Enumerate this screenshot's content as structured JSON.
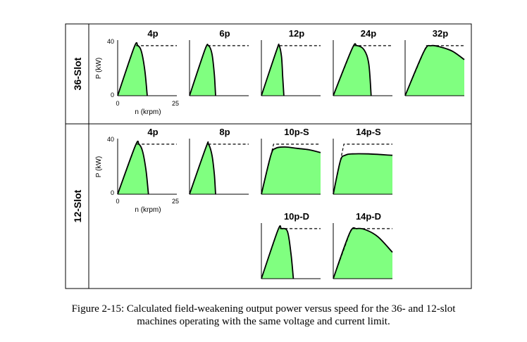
{
  "figure": {
    "caption_line1": "Figure 2-15: Calculated field-weakening output power versus speed for the 36- and 12-slot",
    "caption_line2": "machines operating with the same voltage and current limit.",
    "y_axis_label": "P (kW)",
    "x_axis_label": "n (krpm)",
    "y_tick_max": "40",
    "y_tick_min": "0",
    "x_tick_min": "0",
    "x_tick_max": "25",
    "fill_color": "#80ff80",
    "curve_color": "#000000",
    "limit_line_style": "dashed"
  },
  "chart_data": [
    {
      "type": "area",
      "row": "36-Slot",
      "title": "4p",
      "x": [
        0,
        7,
        8.5,
        10,
        11.5,
        12.5
      ],
      "y": [
        0,
        35,
        36,
        32,
        18,
        0
      ],
      "limit": 36,
      "xlim": [
        0,
        25
      ],
      "ylim": [
        0,
        40
      ]
    },
    {
      "type": "area",
      "row": "36-Slot",
      "title": "6p",
      "x": [
        0,
        6.5,
        8,
        9.5,
        10.5,
        11
      ],
      "y": [
        0,
        33,
        36,
        30,
        15,
        0
      ],
      "limit": 36,
      "xlim": [
        0,
        25
      ],
      "ylim": [
        0,
        40
      ]
    },
    {
      "type": "area",
      "row": "36-Slot",
      "title": "12p",
      "x": [
        0,
        6.5,
        7.5,
        8.5,
        9,
        9.5
      ],
      "y": [
        0,
        33,
        36,
        28,
        14,
        0
      ],
      "limit": 36,
      "xlim": [
        0,
        25
      ],
      "ylim": [
        0,
        40
      ]
    },
    {
      "type": "area",
      "row": "36-Slot",
      "title": "24p",
      "x": [
        0,
        8,
        10,
        13,
        15,
        16
      ],
      "y": [
        0,
        34,
        36,
        33,
        23,
        0
      ],
      "limit": 36,
      "xlim": [
        0,
        25
      ],
      "ylim": [
        0,
        40
      ]
    },
    {
      "type": "area",
      "row": "36-Slot",
      "title": "32p",
      "x": [
        0,
        8,
        11,
        15,
        20,
        25
      ],
      "y": [
        0,
        32,
        36,
        35,
        32,
        26
      ],
      "limit": 36,
      "xlim": [
        0,
        25
      ],
      "ylim": [
        0,
        40
      ]
    },
    {
      "type": "area",
      "row": "12-Slot",
      "title": "4p",
      "x": [
        0,
        7.5,
        9,
        10.5,
        12,
        13
      ],
      "y": [
        0,
        35,
        36,
        31,
        17,
        0
      ],
      "limit": 36,
      "xlim": [
        0,
        25
      ],
      "ylim": [
        0,
        40
      ]
    },
    {
      "type": "area",
      "row": "12-Slot",
      "title": "8p",
      "x": [
        0,
        7,
        8,
        9.5,
        10.5,
        11
      ],
      "y": [
        0,
        34,
        36,
        28,
        14,
        0
      ],
      "limit": 36,
      "xlim": [
        0,
        25
      ],
      "ylim": [
        0,
        40
      ]
    },
    {
      "type": "area",
      "row": "12-Slot",
      "title": "10p-S",
      "x": [
        0,
        4,
        6,
        10,
        15,
        20,
        25
      ],
      "y": [
        0,
        28,
        33,
        34,
        33,
        32,
        30
      ],
      "limit": 36,
      "xlim": [
        0,
        25
      ],
      "ylim": [
        0,
        40
      ]
    },
    {
      "type": "area",
      "row": "12-Slot",
      "title": "14p-S",
      "x": [
        0,
        3,
        5,
        8,
        15,
        25
      ],
      "y": [
        0,
        24,
        28,
        29,
        29,
        28
      ],
      "limit": 36,
      "xlim": [
        0,
        25
      ],
      "ylim": [
        0,
        40
      ]
    },
    {
      "type": "area",
      "row": "12-Slot",
      "title": "10p-D",
      "x": [
        0,
        7,
        8.5,
        11,
        12.5,
        13.5
      ],
      "y": [
        0,
        35,
        36,
        34,
        18,
        0
      ],
      "limit": 36,
      "xlim": [
        0,
        25
      ],
      "ylim": [
        0,
        40
      ]
    },
    {
      "type": "area",
      "row": "12-Slot",
      "title": "14p-D",
      "x": [
        0,
        7,
        10,
        14,
        19,
        25
      ],
      "y": [
        0,
        33,
        36,
        35,
        30,
        19
      ],
      "limit": 36,
      "xlim": [
        0,
        25
      ],
      "ylim": [
        0,
        40
      ]
    }
  ]
}
